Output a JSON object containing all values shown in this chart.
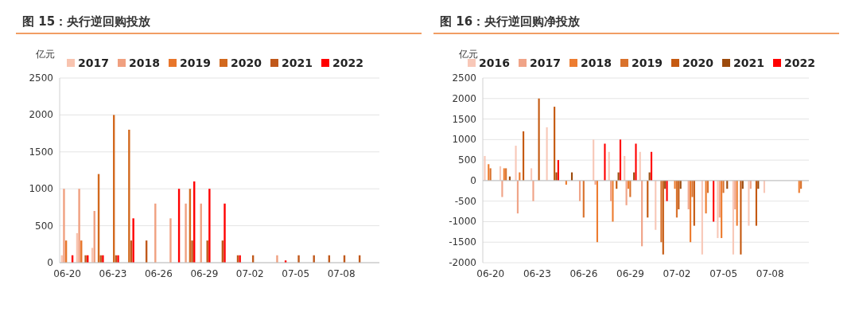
{
  "chart_data": [
    {
      "type": "bar",
      "title": "图 15：央行逆回购投放",
      "ylabel": "亿元",
      "categories": [
        "06-20",
        null,
        null,
        "06-23",
        null,
        null,
        "06-26",
        null,
        null,
        "06-29",
        null,
        null,
        "07-02",
        null,
        null,
        "07-05",
        null,
        null,
        "07-08",
        null,
        null
      ],
      "ylim": [
        0,
        2500
      ],
      "yticks": [
        0,
        500,
        1000,
        1500,
        2000,
        2500
      ],
      "grid": "y",
      "legend": "top",
      "series": [
        {
          "name": "2017",
          "color": "#f8c4b0",
          "values": [
            100,
            400,
            200,
            null,
            null,
            null,
            null,
            null,
            null,
            null,
            null,
            null,
            null,
            null,
            null,
            null,
            null,
            null,
            null,
            null,
            null
          ]
        },
        {
          "name": "2018",
          "color": "#f0a080",
          "values": [
            1000,
            1000,
            700,
            null,
            null,
            null,
            800,
            600,
            800,
            800,
            null,
            null,
            null,
            null,
            100,
            null,
            null,
            null,
            null,
            null,
            null
          ]
        },
        {
          "name": "2019",
          "color": "#e8762b",
          "values": [
            300,
            300,
            null,
            null,
            null,
            null,
            null,
            null,
            null,
            null,
            null,
            null,
            null,
            null,
            null,
            null,
            null,
            null,
            null,
            null,
            null
          ]
        },
        {
          "name": "2020",
          "color": "#d2691e",
          "values": [
            null,
            null,
            1200,
            2000,
            1800,
            null,
            null,
            null,
            1000,
            null,
            null,
            null,
            null,
            null,
            null,
            null,
            null,
            null,
            null,
            null,
            null
          ]
        },
        {
          "name": "2021",
          "color": "#c0581a",
          "values": [
            null,
            100,
            100,
            100,
            300,
            300,
            null,
            null,
            300,
            300,
            300,
            100,
            100,
            null,
            null,
            100,
            100,
            100,
            100,
            100,
            null
          ]
        },
        {
          "name": "2022",
          "color": "#ff0000",
          "values": [
            100,
            100,
            100,
            100,
            600,
            null,
            null,
            1000,
            1100,
            1000,
            800,
            100,
            null,
            null,
            30,
            null,
            null,
            null,
            null,
            null,
            null
          ]
        }
      ]
    },
    {
      "type": "bar",
      "title": "图 16：央行逆回购净投放",
      "ylabel": "亿元",
      "categories": [
        "06-20",
        null,
        null,
        "06-23",
        null,
        null,
        "06-26",
        null,
        null,
        "06-29",
        null,
        null,
        "07-02",
        null,
        null,
        "07-05",
        null,
        null,
        "07-08",
        null,
        null
      ],
      "ylim": [
        -2000,
        2500
      ],
      "yticks": [
        -2000,
        -1500,
        -1000,
        -500,
        0,
        500,
        1000,
        1500,
        2000,
        2500
      ],
      "grid": "y",
      "legend": "top",
      "series": [
        {
          "name": "2016",
          "color": "#f8c8b8",
          "values": [
            600,
            350,
            850,
            300,
            1300,
            null,
            null,
            1000,
            700,
            600,
            700,
            -1200,
            null,
            null,
            -1800,
            -1400,
            -1800,
            -1100,
            -300,
            null,
            null
          ]
        },
        {
          "name": "2017",
          "color": "#f0a488",
          "values": [
            null,
            -400,
            -800,
            -500,
            null,
            null,
            -500,
            -100,
            -500,
            -600,
            -1600,
            null,
            null,
            -700,
            null,
            -900,
            -700,
            -200,
            null,
            null,
            null
          ]
        },
        {
          "name": "2018",
          "color": "#ed7d31",
          "values": [
            400,
            300,
            200,
            null,
            null,
            -100,
            null,
            -1500,
            -1000,
            -200,
            null,
            null,
            -200,
            -1500,
            -800,
            -1400,
            -1100,
            null,
            null,
            null,
            -300
          ]
        },
        {
          "name": "2019",
          "color": "#d9722c",
          "values": [
            300,
            300,
            null,
            null,
            null,
            null,
            -900,
            null,
            null,
            -400,
            null,
            -1500,
            -900,
            -400,
            -300,
            -300,
            null,
            null,
            null,
            null,
            -200
          ]
        },
        {
          "name": "2020",
          "color": "#c55a11",
          "values": [
            null,
            null,
            1200,
            2000,
            1800,
            null,
            null,
            null,
            -200,
            null,
            -900,
            -1800,
            -700,
            -1100,
            null,
            null,
            -1800,
            -1100,
            null,
            null,
            null
          ]
        },
        {
          "name": "2021",
          "color": "#9c4a0c",
          "values": [
            null,
            100,
            null,
            null,
            200,
            200,
            null,
            null,
            200,
            200,
            200,
            -200,
            -200,
            null,
            null,
            -200,
            -200,
            -200,
            null,
            null,
            null
          ]
        },
        {
          "name": "2022",
          "color": "#ff0000",
          "values": [
            null,
            null,
            null,
            null,
            500,
            null,
            null,
            900,
            1000,
            900,
            700,
            -500,
            null,
            null,
            -1000,
            null,
            null,
            null,
            null,
            null,
            null
          ]
        }
      ]
    }
  ]
}
